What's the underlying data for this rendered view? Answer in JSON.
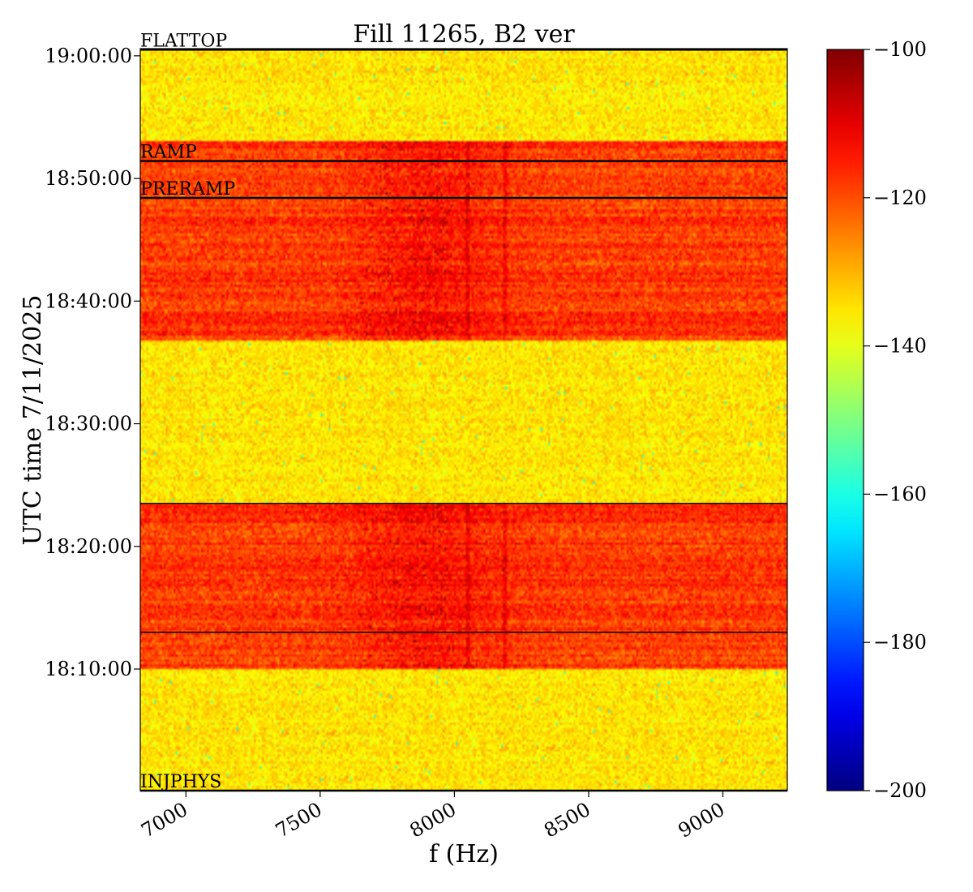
{
  "chart_data": {
    "type": "heatmap",
    "title": "Fill 11265, B2 ver",
    "xlabel": "f (Hz)",
    "ylabel": "UTC time 7/11/2025",
    "xlim": [
      6830,
      9240
    ],
    "ylim": [
      "18:00:05",
      "19:00:35"
    ],
    "x_ticks": [
      7000,
      7500,
      8000,
      8500,
      9000
    ],
    "x_tick_labels": [
      "7000",
      "7500",
      "8000",
      "8500",
      "9000"
    ],
    "y_ticks": [
      "18:10:00",
      "18:20:00",
      "18:30:00",
      "18:40:00",
      "18:50:00",
      "19:00:00"
    ],
    "colorbar": {
      "colormap": "jet",
      "range": [
        -200,
        -100
      ],
      "ticks": [
        -200,
        -180,
        -160,
        -140,
        -120,
        -100
      ],
      "tick_labels": [
        "−200",
        "−180",
        "−160",
        "−140",
        "−120",
        "−100"
      ]
    },
    "background_level": -135,
    "elevated_bands": [
      {
        "start": "18:09:55",
        "end": "18:23:30",
        "level": -118
      },
      {
        "start": "18:36:50",
        "end": "18:53:00",
        "level": -118
      }
    ],
    "spectral_lines_hz": [
      8050,
      8190
    ],
    "beam_mode_markers": [
      {
        "label": "INJPHYS",
        "time": "18:00:05"
      },
      {
        "label": "PRERAMP",
        "time": "18:48:25"
      },
      {
        "label": "RAMP",
        "time": "18:51:25"
      },
      {
        "label": "FLATTOP",
        "time": "19:00:30"
      }
    ],
    "other_time_lines": [
      "18:13:00",
      "18:23:30"
    ]
  }
}
